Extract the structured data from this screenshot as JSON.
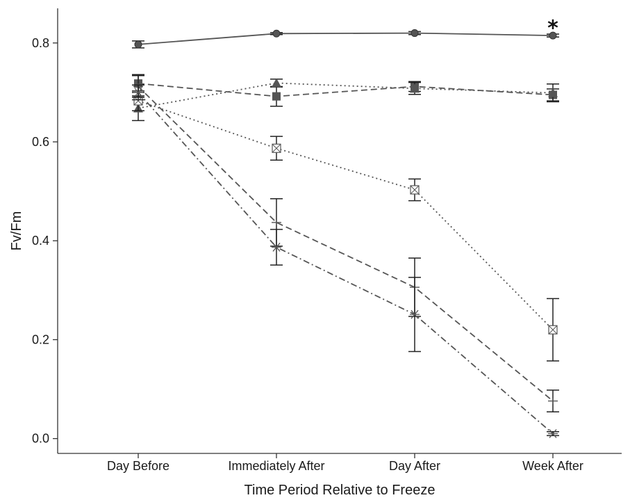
{
  "chart_data": {
    "type": "line",
    "xlabel": "Time Period Relative to Freeze",
    "ylabel": "Fv/Fm",
    "categories": [
      "Day Before",
      "Immediately After",
      "Day After",
      "Week After"
    ],
    "ylim": [
      -0.03,
      0.87
    ],
    "yticks": [
      "0.0",
      "0.2",
      "0.4",
      "0.6",
      "0.8"
    ],
    "grid": false,
    "legend": "none",
    "annotations": [
      {
        "text": "*",
        "category": "Week After",
        "y": 0.833
      }
    ],
    "series": [
      {
        "marker": "circle",
        "dash": "solid",
        "color": "#555555",
        "values": [
          0.797,
          0.819,
          0.82,
          0.815
        ],
        "errors": [
          0.007,
          0.002,
          0.003,
          0.003
        ]
      },
      {
        "marker": "square",
        "dash": "dashed",
        "color": "#555555",
        "values": [
          0.718,
          0.692,
          0.712,
          0.695
        ],
        "errors": [
          0.018,
          0.02,
          0.01,
          0.012
        ]
      },
      {
        "marker": "triangle",
        "dash": "dotted",
        "color": "#555555",
        "values": [
          0.668,
          0.719,
          0.708,
          0.699
        ],
        "errors": [
          0.025,
          0.008,
          0.012,
          0.018
        ]
      },
      {
        "marker": "boxed-x",
        "dash": "dotted",
        "color": "#555555",
        "values": [
          0.683,
          0.587,
          0.503,
          0.22
        ],
        "errors": [
          0.02,
          0.024,
          0.022,
          0.063
        ]
      },
      {
        "marker": "plus",
        "dash": "dashed",
        "color": "#555555",
        "values": [
          0.712,
          0.437,
          0.306,
          0.076
        ],
        "errors": [
          0.022,
          0.048,
          0.059,
          0.022
        ]
      },
      {
        "marker": "asterisk",
        "dash": "dashdot",
        "color": "#555555",
        "values": [
          0.7,
          0.387,
          0.251,
          0.01
        ],
        "errors": [
          0.015,
          0.036,
          0.075,
          0.004
        ]
      }
    ]
  }
}
